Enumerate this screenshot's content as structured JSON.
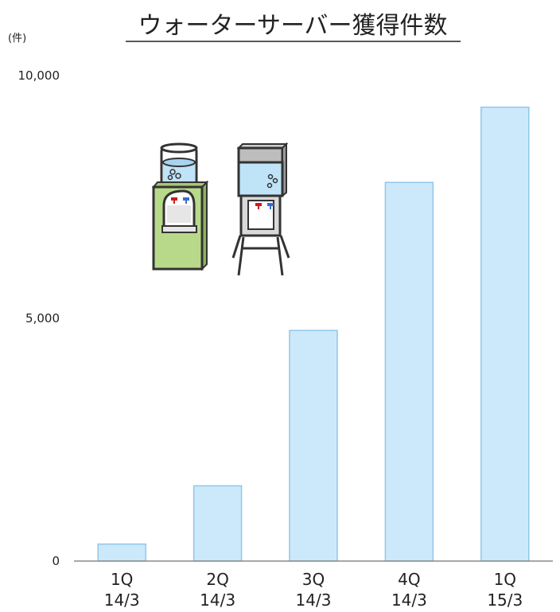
{
  "chart_data": {
    "type": "bar",
    "title": "ウォーターサーバー獲得件数",
    "unit_label": "(件)",
    "categories": [
      {
        "line1": "1Q",
        "line2": "14/3"
      },
      {
        "line1": "2Q",
        "line2": "14/3"
      },
      {
        "line1": "3Q",
        "line2": "14/3"
      },
      {
        "line1": "4Q",
        "line2": "14/3"
      },
      {
        "line1": "1Q",
        "line2": "15/3"
      }
    ],
    "values": [
      350,
      1550,
      4750,
      7800,
      9350
    ],
    "ylim": [
      0,
      10000
    ],
    "yticks": [
      {
        "value": 0,
        "label": "0"
      },
      {
        "value": 5000,
        "label": "5,000"
      },
      {
        "value": 10000,
        "label": "10,000"
      }
    ],
    "grid": false,
    "bar_fill": "#cce9fb",
    "bar_stroke": "#92c6ea",
    "illustrations": [
      "water-cooler-icon",
      "water-server-stand-icon"
    ]
  }
}
